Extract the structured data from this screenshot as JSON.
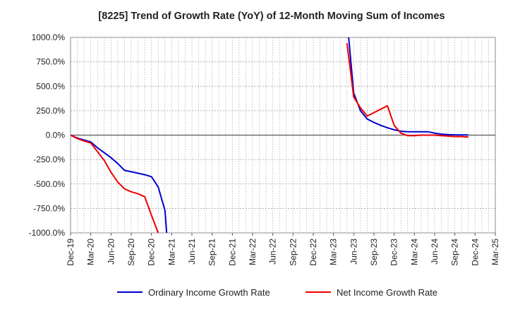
{
  "chart_data": {
    "type": "line",
    "title": "[8225]  Trend of Growth Rate (YoY) of 12-Month Moving Sum of Incomes",
    "xlabel": "",
    "ylabel": "",
    "ylim": [
      -1000,
      1000
    ],
    "y_ticks": [
      "1000.0%",
      "750.0%",
      "500.0%",
      "250.0%",
      "0.0%",
      "-250.0%",
      "-500.0%",
      "-750.0%",
      "-1000.0%"
    ],
    "y_tick_values": [
      1000,
      750,
      500,
      250,
      0,
      -250,
      -500,
      -750,
      -1000
    ],
    "x_ticks": [
      "Dec-19",
      "Mar-20",
      "Jun-20",
      "Sep-20",
      "Dec-20",
      "Mar-21",
      "Jun-21",
      "Sep-21",
      "Dec-21",
      "Mar-22",
      "Jun-22",
      "Sep-22",
      "Dec-22",
      "Mar-23",
      "Jun-23",
      "Sep-23",
      "Dec-23",
      "Mar-24",
      "Jun-24",
      "Sep-24",
      "Dec-24",
      "Mar-25"
    ],
    "grid": true,
    "legend_position": "bottom",
    "series": [
      {
        "name": "Ordinary Income Growth Rate",
        "color": "#0000cc",
        "points": [
          [
            "Dec-19",
            0
          ],
          [
            "Jan-20",
            -30
          ],
          [
            "Feb-20",
            -50
          ],
          [
            "Mar-20",
            -70
          ],
          [
            "Apr-20",
            -130
          ],
          [
            "May-20",
            -180
          ],
          [
            "Jun-20",
            -230
          ],
          [
            "Jul-20",
            -290
          ],
          [
            "Aug-20",
            -360
          ],
          [
            "Sep-20",
            -375
          ],
          [
            "Oct-20",
            -390
          ],
          [
            "Nov-20",
            -405
          ],
          [
            "Dec-20",
            -425
          ],
          [
            "Jan-21",
            -530
          ],
          [
            "Feb-21",
            -770
          ],
          [
            "Feb-21+",
            -1000
          ],
          null,
          [
            "May-23+",
            1000
          ],
          [
            "Jun-23",
            430
          ],
          [
            "Jul-23",
            250
          ],
          [
            "Aug-23",
            165
          ],
          [
            "Sep-23",
            130
          ],
          [
            "Oct-23",
            100
          ],
          [
            "Nov-23",
            75
          ],
          [
            "Dec-23",
            55
          ],
          [
            "Jan-24",
            40
          ],
          [
            "Feb-24",
            35
          ],
          [
            "Mar-24",
            35
          ],
          [
            "Apr-24",
            35
          ],
          [
            "May-24",
            35
          ],
          [
            "Jun-24",
            20
          ],
          [
            "Jul-24",
            10
          ],
          [
            "Aug-24",
            5
          ],
          [
            "Sep-24",
            3
          ],
          [
            "Oct-24",
            2
          ],
          [
            "Nov-24",
            2
          ]
        ]
      },
      {
        "name": "Net Income Growth Rate",
        "color": "#ee0000",
        "points": [
          [
            "Dec-19",
            0
          ],
          [
            "Jan-20",
            -35
          ],
          [
            "Feb-20",
            -60
          ],
          [
            "Mar-20",
            -80
          ],
          [
            "Apr-20",
            -170
          ],
          [
            "May-20",
            -260
          ],
          [
            "Jun-20",
            -380
          ],
          [
            "Jul-20",
            -480
          ],
          [
            "Aug-20",
            -550
          ],
          [
            "Sep-20",
            -580
          ],
          [
            "Oct-20",
            -600
          ],
          [
            "Nov-20",
            -630
          ],
          [
            "Dec-20",
            -820
          ],
          [
            "Jan-21",
            -1000
          ],
          null,
          [
            "May-23",
            940
          ],
          [
            "Jun-23",
            390
          ],
          [
            "Jul-23",
            280
          ],
          [
            "Aug-23",
            195
          ],
          [
            "Sep-23",
            230
          ],
          [
            "Oct-23",
            265
          ],
          [
            "Nov-23",
            300
          ],
          [
            "Dec-23",
            100
          ],
          [
            "Jan-24",
            20
          ],
          [
            "Feb-24",
            -5
          ],
          [
            "Mar-24",
            -5
          ],
          [
            "Apr-24",
            0
          ],
          [
            "May-24",
            0
          ],
          [
            "Jun-24",
            0
          ],
          [
            "Jul-24",
            -5
          ],
          [
            "Aug-24",
            -10
          ],
          [
            "Sep-24",
            -15
          ],
          [
            "Oct-24",
            -15
          ],
          [
            "Nov-24",
            -20
          ]
        ]
      }
    ]
  }
}
